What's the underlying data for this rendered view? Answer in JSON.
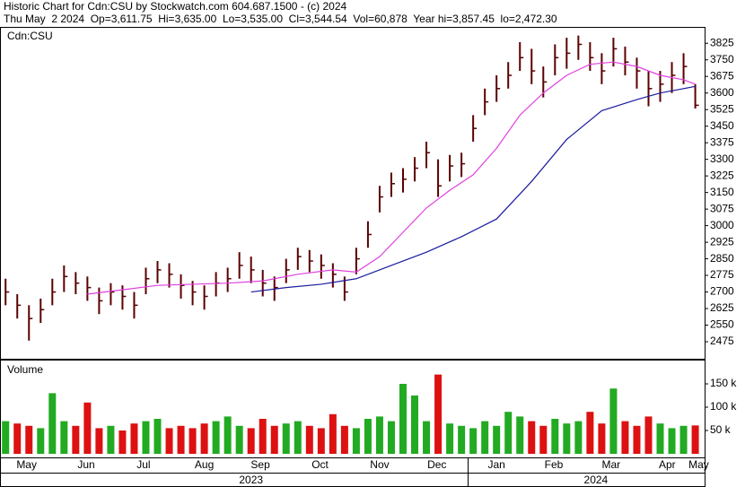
{
  "header": {
    "line1": "Historic Chart for Cdn:CSU by Stockwatch.com 604.687.1500 - (c) 2024",
    "line2": "Thu May  2 2024  Op=3,611.75  Hi=3,635.00  Lo=3,535.00  Cl=3,544.54  Vol=60,878  Year hi=3,857.45  lo=2,472.30"
  },
  "chart_data": [
    {
      "type": "ohlc",
      "label": "Cdn:CSU",
      "color": "#5a0000",
      "x": [
        0,
        1,
        2,
        3,
        4,
        5,
        6,
        7,
        8,
        9,
        10,
        11,
        12,
        13,
        14,
        15,
        16,
        17,
        18,
        19,
        20,
        21,
        22,
        23,
        24,
        25,
        26,
        27,
        28,
        29,
        30,
        31,
        32,
        33,
        34,
        35,
        36,
        37,
        38,
        39,
        40,
        41,
        42,
        43,
        44,
        45,
        46,
        47,
        48,
        49,
        50,
        51,
        52,
        53,
        54,
        55,
        56,
        57,
        58,
        59
      ],
      "high": [
        2760,
        2690,
        2640,
        2670,
        2760,
        2820,
        2790,
        2770,
        2720,
        2740,
        2730,
        2700,
        2810,
        2840,
        2830,
        2780,
        2750,
        2730,
        2790,
        2810,
        2880,
        2860,
        2800,
        2770,
        2850,
        2900,
        2890,
        2870,
        2830,
        2770,
        2900,
        3020,
        3180,
        3240,
        3260,
        3310,
        3380,
        3300,
        3320,
        3330,
        3500,
        3620,
        3680,
        3740,
        3830,
        3800,
        3720,
        3820,
        3850,
        3860,
        3830,
        3780,
        3850,
        3810,
        3760,
        3700,
        3700,
        3740,
        3780,
        3640
      ],
      "low": [
        2640,
        2580,
        2480,
        2560,
        2640,
        2700,
        2690,
        2660,
        2600,
        2640,
        2620,
        2580,
        2690,
        2740,
        2720,
        2670,
        2640,
        2620,
        2680,
        2700,
        2760,
        2740,
        2680,
        2660,
        2740,
        2800,
        2790,
        2760,
        2720,
        2660,
        2780,
        2900,
        3060,
        3130,
        3150,
        3200,
        3260,
        3130,
        3200,
        3220,
        3380,
        3500,
        3560,
        3620,
        3700,
        3640,
        3580,
        3680,
        3710,
        3750,
        3700,
        3640,
        3720,
        3680,
        3620,
        3540,
        3560,
        3600,
        3640,
        3530
      ],
      "close": [
        2700,
        2640,
        2580,
        2620,
        2700,
        2770,
        2740,
        2720,
        2660,
        2700,
        2680,
        2640,
        2760,
        2800,
        2780,
        2730,
        2700,
        2680,
        2740,
        2760,
        2820,
        2800,
        2740,
        2720,
        2800,
        2860,
        2840,
        2820,
        2780,
        2700,
        2850,
        2960,
        3130,
        3190,
        3210,
        3260,
        3330,
        3180,
        3270,
        3280,
        3440,
        3560,
        3620,
        3680,
        3760,
        3700,
        3650,
        3760,
        3780,
        3820,
        3760,
        3700,
        3800,
        3740,
        3700,
        3620,
        3640,
        3680,
        3720,
        3544.54
      ],
      "series": [
        {
          "color": "#e040e0",
          "x": [
            7,
            10,
            13,
            16,
            19,
            22,
            25,
            28,
            30,
            32,
            34,
            36,
            38,
            40,
            42,
            44,
            46,
            48,
            50,
            52,
            54,
            56,
            58,
            59
          ],
          "values": [
            2690,
            2710,
            2730,
            2735,
            2740,
            2750,
            2780,
            2800,
            2790,
            2860,
            2970,
            3080,
            3160,
            3230,
            3350,
            3500,
            3600,
            3680,
            3730,
            3740,
            3720,
            3680,
            3660,
            3640
          ]
        },
        {
          "color": "#1a1aa0",
          "x": [
            21,
            24,
            27,
            30,
            33,
            36,
            39,
            42,
            45,
            48,
            51,
            54,
            56,
            58,
            59
          ],
          "values": [
            2700,
            2720,
            2735,
            2760,
            2820,
            2880,
            2950,
            3030,
            3200,
            3390,
            3520,
            3570,
            3600,
            3620,
            3630
          ]
        }
      ],
      "xlim": [
        -0.4,
        59.8
      ],
      "ylim": [
        2398,
        3895
      ],
      "yticks": [
        2475,
        2550,
        2625,
        2700,
        2775,
        2850,
        2925,
        3000,
        3075,
        3150,
        3225,
        3300,
        3375,
        3450,
        3525,
        3600,
        3675,
        3750,
        3825
      ],
      "xticks": [
        {
          "value": 1.8,
          "label": "May"
        },
        {
          "value": 6.9,
          "label": "Jun"
        },
        {
          "value": 11.8,
          "label": "Jul"
        },
        {
          "value": 17,
          "label": "Aug"
        },
        {
          "value": 21.8,
          "label": "Sep"
        },
        {
          "value": 26.9,
          "label": "Oct"
        },
        {
          "value": 32,
          "label": "Nov"
        },
        {
          "value": 36.9,
          "label": "Dec"
        },
        {
          "value": 42,
          "label": "Jan"
        },
        {
          "value": 46.9,
          "label": "Feb"
        },
        {
          "value": 51.8,
          "label": "Mar"
        },
        {
          "value": 56.6,
          "label": "Apr"
        },
        {
          "value": 59.3,
          "label": "May"
        }
      ],
      "years": [
        {
          "value": 21,
          "label": "2023"
        },
        {
          "value": 50.5,
          "label": "2024"
        }
      ]
    },
    {
      "type": "bar",
      "label": "Volume",
      "up_color": "#22aa22",
      "down_color": "#dd1111",
      "x": [
        0,
        1,
        2,
        3,
        4,
        5,
        6,
        7,
        8,
        9,
        10,
        11,
        12,
        13,
        14,
        15,
        16,
        17,
        18,
        19,
        20,
        21,
        22,
        23,
        24,
        25,
        26,
        27,
        28,
        29,
        30,
        31,
        32,
        33,
        34,
        35,
        36,
        37,
        38,
        39,
        40,
        41,
        42,
        43,
        44,
        45,
        46,
        47,
        48,
        49,
        50,
        51,
        52,
        53,
        54,
        55,
        56,
        57,
        58,
        59
      ],
      "values": [
        70000,
        65000,
        60000,
        55000,
        130000,
        70000,
        60000,
        110000,
        55000,
        60000,
        50000,
        65000,
        70000,
        75000,
        55000,
        60000,
        55000,
        65000,
        70000,
        80000,
        60000,
        55000,
        75000,
        60000,
        65000,
        70000,
        60000,
        55000,
        85000,
        60000,
        55000,
        75000,
        80000,
        70000,
        150000,
        125000,
        70000,
        170000,
        65000,
        60000,
        55000,
        70000,
        60000,
        90000,
        80000,
        70000,
        60000,
        75000,
        65000,
        70000,
        90000,
        65000,
        140000,
        70000,
        60000,
        80000,
        65000,
        55000,
        60000,
        60878
      ],
      "xlim": [
        -0.4,
        59.8
      ],
      "ylim": [
        0,
        200000
      ],
      "yticks": [
        {
          "value": 50000,
          "label": "50 k"
        },
        {
          "value": 100000,
          "label": "100 k"
        },
        {
          "value": 150000,
          "label": "150 k"
        }
      ]
    }
  ]
}
